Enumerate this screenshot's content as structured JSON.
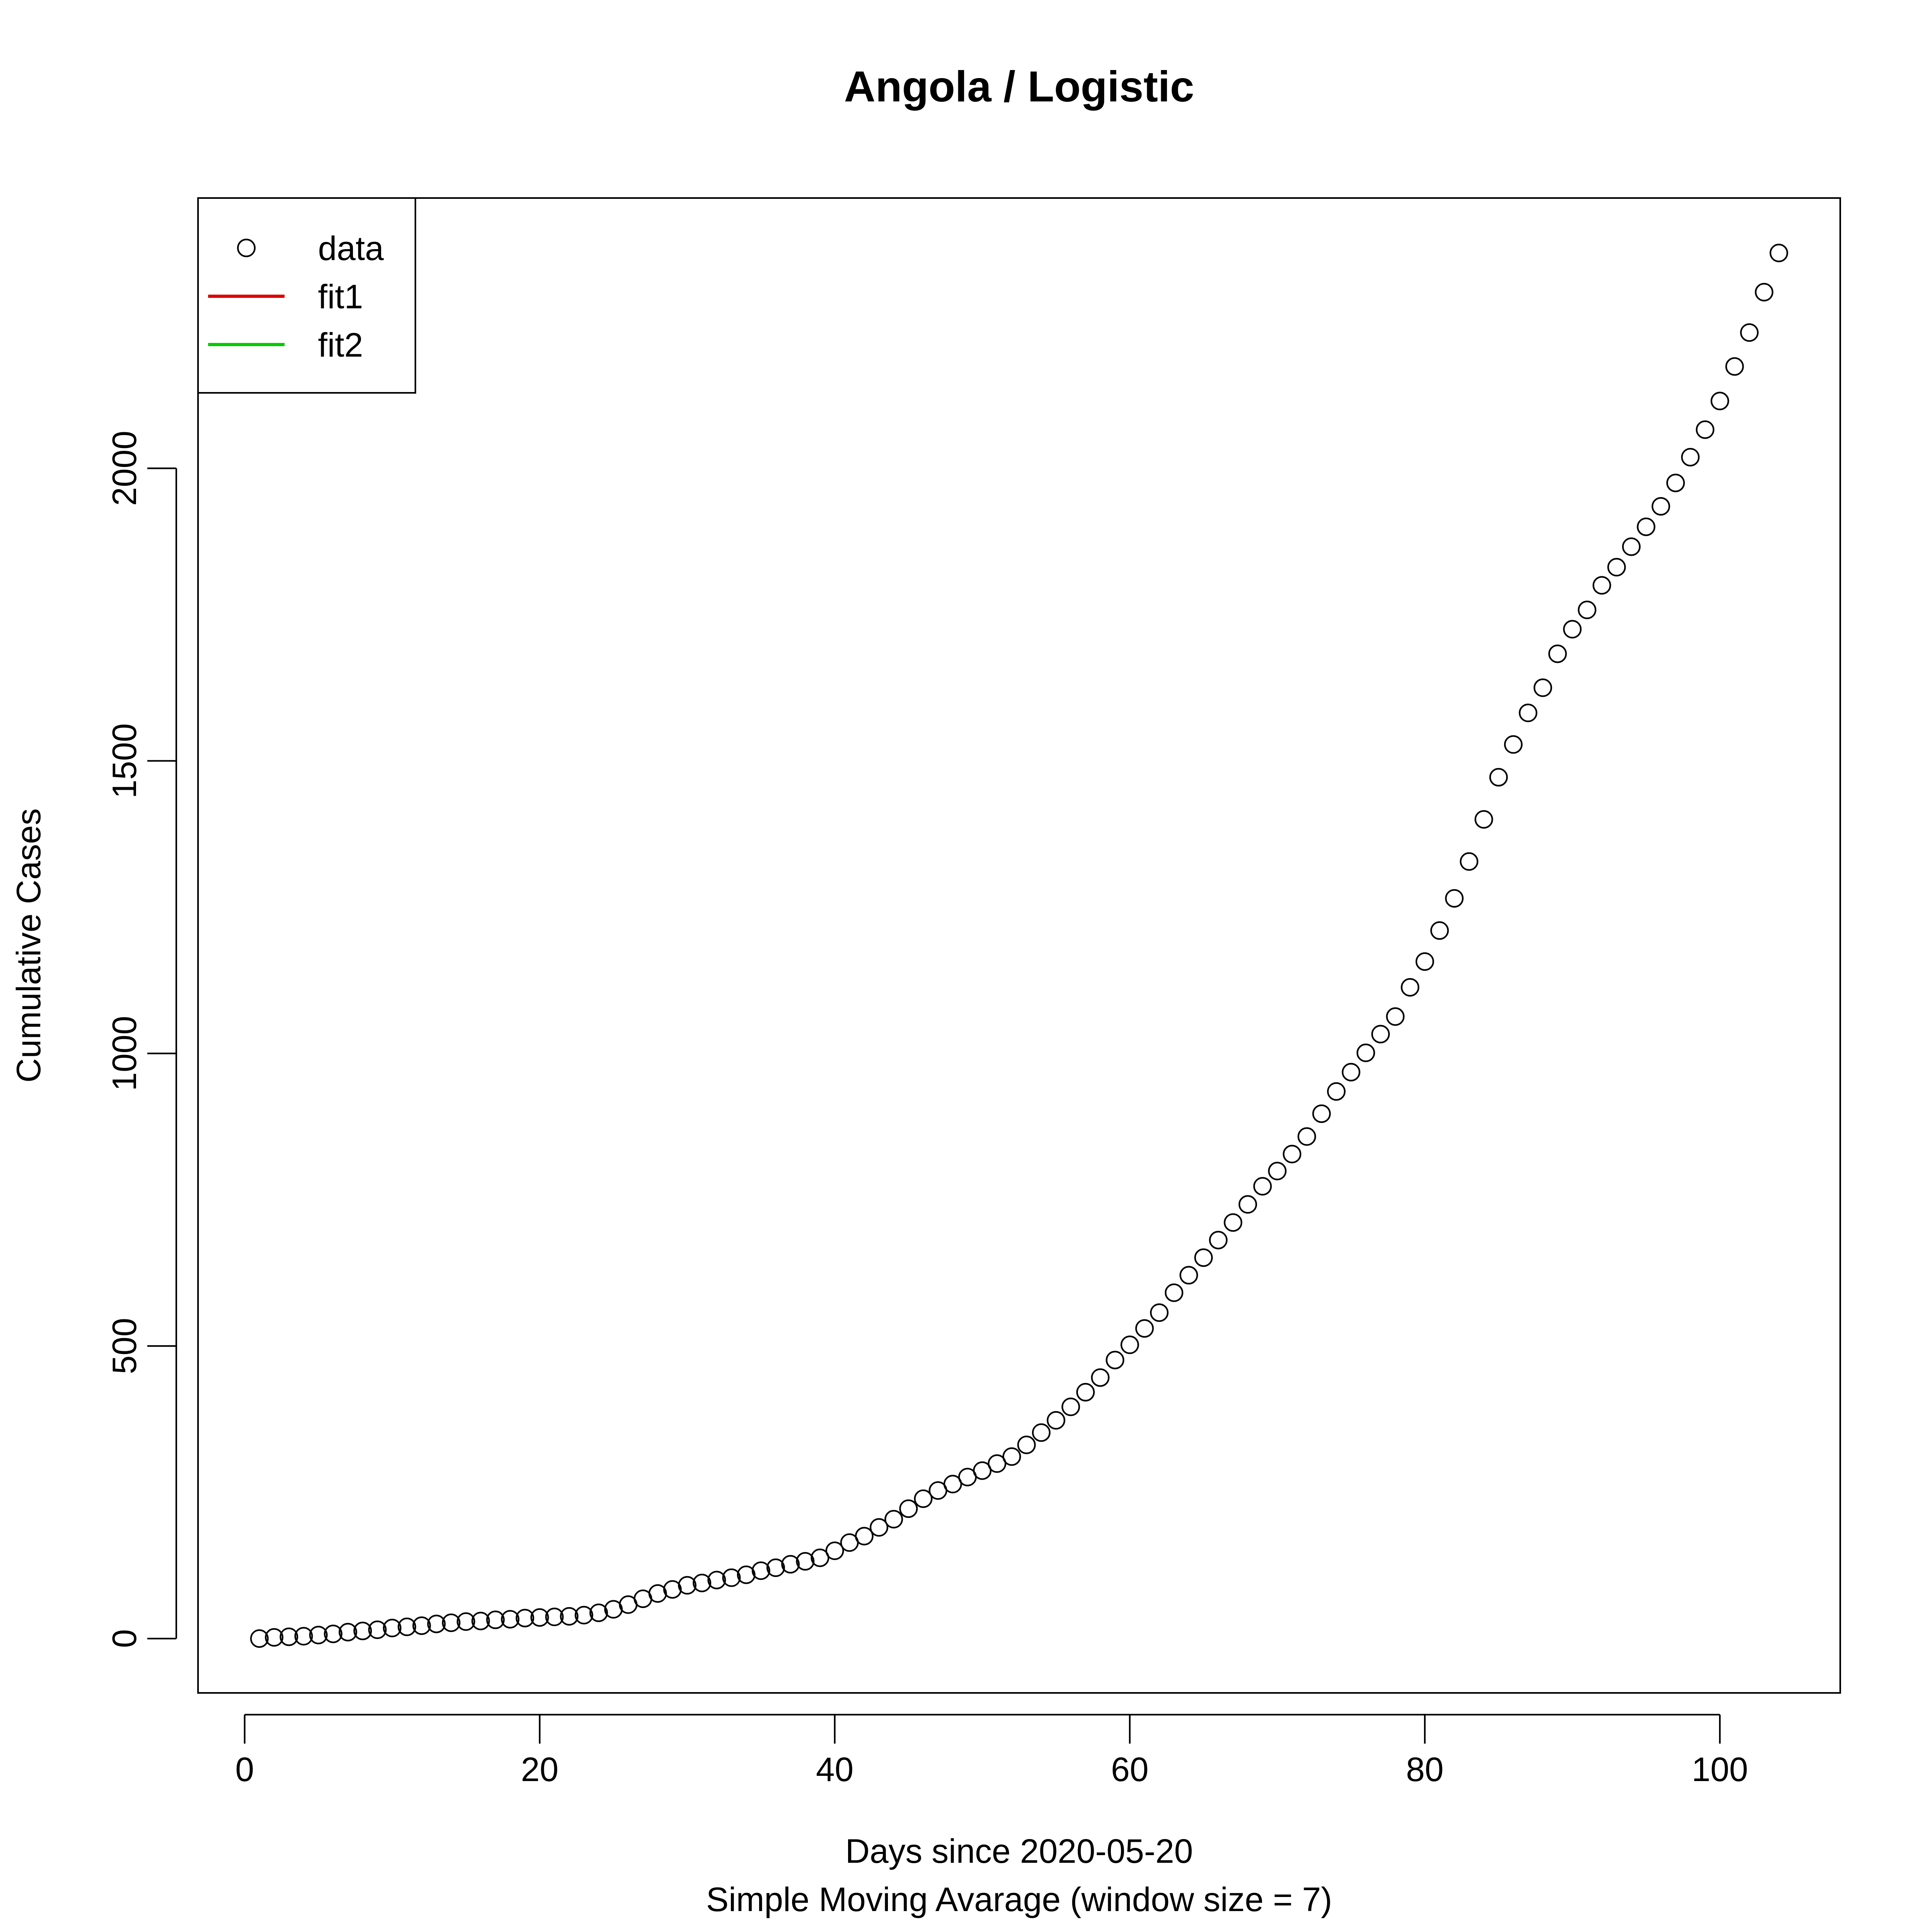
{
  "colors": {
    "data": "#000000",
    "fit1": "#DF0000",
    "fit2": "#00CD00",
    "axis": "#000000",
    "background": "#FFFFFF"
  },
  "chart_data": {
    "type": "scatter",
    "title": "Angola / Logistic",
    "xlabel": "Days since 2020-05-20",
    "xlabel2": "Simple Moving Avarage (window size = 7)",
    "ylabel": "Cumulative Cases",
    "xlim": [
      -3.16,
      108.16
    ],
    "ylim": [
      -92.9,
      2461.9
    ],
    "xticks": [
      0,
      20,
      40,
      60,
      80,
      100
    ],
    "yticks": [
      0,
      500,
      1000,
      1500,
      2000
    ],
    "grid": false,
    "legend": {
      "placement": "top-left",
      "entries": [
        {
          "label": "data",
          "symbol": "open-circle"
        },
        {
          "label": "fit1",
          "symbol": "line"
        },
        {
          "label": "fit2",
          "symbol": "line"
        }
      ]
    },
    "series": [
      {
        "name": "data",
        "x": [
          1,
          2,
          3,
          4,
          5,
          6,
          7,
          8,
          9,
          10,
          11,
          12,
          13,
          14,
          15,
          16,
          17,
          18,
          19,
          20,
          21,
          22,
          23,
          24,
          25,
          26,
          27,
          28,
          29,
          30,
          31,
          32,
          33,
          34,
          35,
          36,
          37,
          38,
          39,
          40,
          41,
          42,
          43,
          44,
          45,
          46,
          47,
          48,
          49,
          50,
          51,
          52,
          53,
          54,
          55,
          56,
          57,
          58,
          59,
          60,
          61,
          62,
          63,
          64,
          65,
          66,
          67,
          68,
          69,
          70,
          71,
          72,
          73,
          74,
          75,
          76,
          77,
          78,
          79,
          80,
          81,
          82,
          83,
          84,
          85,
          86,
          87,
          88,
          89,
          90,
          91,
          92,
          93,
          94,
          95,
          96,
          97,
          98,
          99,
          100,
          101,
          102,
          103,
          104
        ],
        "y": [
          0,
          2,
          3,
          4,
          6,
          8,
          11,
          13,
          15,
          18,
          20,
          22,
          25,
          27,
          29,
          30,
          32,
          33,
          35,
          36,
          37,
          38,
          40,
          44,
          50,
          58,
          68,
          77,
          84,
          91,
          95,
          100,
          104,
          109,
          116,
          121,
          127,
          132,
          138,
          150,
          164,
          175,
          190,
          204,
          222,
          239,
          253,
          264,
          276,
          287,
          299,
          311,
          331,
          352,
          373,
          396,
          421,
          446,
          476,
          502,
          530,
          557,
          591,
          621,
          651,
          681,
          711,
          742,
          773,
          799,
          828,
          858,
          897,
          935,
          968,
          1001,
          1033,
          1063,
          1113,
          1157,
          1210,
          1265,
          1328,
          1400,
          1472,
          1528,
          1582,
          1625,
          1683,
          1725,
          1758,
          1800,
          1831,
          1866,
          1900,
          1935,
          1975,
          2019,
          2066,
          2115,
          2174,
          2232,
          2301,
          2368
        ]
      },
      {
        "name": "fit1",
        "x": [],
        "y": []
      },
      {
        "name": "fit2",
        "x": [],
        "y": []
      }
    ]
  }
}
